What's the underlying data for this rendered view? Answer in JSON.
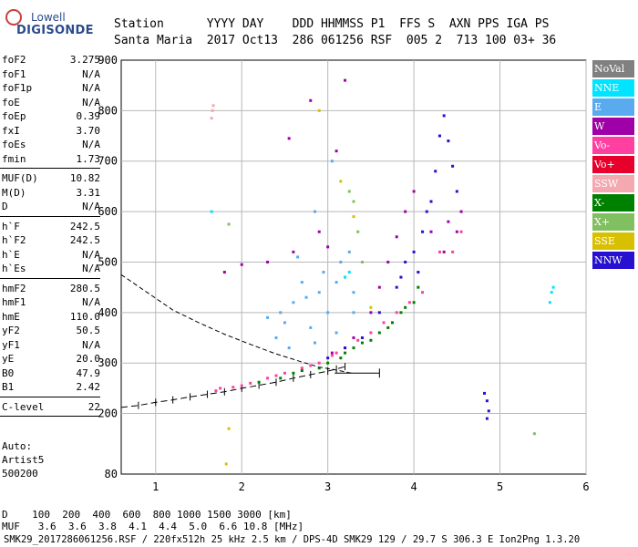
{
  "logo": {
    "line1": "Lowell",
    "line2": "DIGISONDE"
  },
  "header": {
    "line1": "Station      YYYY DAY    DDD HHMMSS P1  FFS S  AXN PPS IGA PS",
    "line2": "Santa Maria  2017 Oct13  286 061256 RSF  005 2  713 100 03+ 36"
  },
  "params": [
    {
      "name": "foF2",
      "value": "3.275"
    },
    {
      "name": "foF1",
      "value": "N/A"
    },
    {
      "name": "foF1p",
      "value": "N/A"
    },
    {
      "name": "foE",
      "value": "N/A"
    },
    {
      "name": "foEp",
      "value": "0.39"
    },
    {
      "name": "fxI",
      "value": "3.70"
    },
    {
      "name": "foEs",
      "value": "N/A"
    },
    {
      "name": "fmin",
      "value": "1.73"
    },
    {
      "sep": true
    },
    {
      "name": "MUF(D)",
      "value": "10.82"
    },
    {
      "name": "M(D)",
      "value": "3.31"
    },
    {
      "name": "D",
      "value": "N/A"
    },
    {
      "sep": true
    },
    {
      "name": "h`F",
      "value": "242.5"
    },
    {
      "name": "h`F2",
      "value": "242.5"
    },
    {
      "name": "h`E",
      "value": "N/A"
    },
    {
      "name": "h`Es",
      "value": "N/A"
    },
    {
      "sep": true
    },
    {
      "name": "hmF2",
      "value": "280.5"
    },
    {
      "name": "hmF1",
      "value": "N/A"
    },
    {
      "name": "hmE",
      "value": "110.0"
    },
    {
      "name": "yF2",
      "value": "50.5"
    },
    {
      "name": "yF1",
      "value": "N/A"
    },
    {
      "name": "yE",
      "value": "20.0"
    },
    {
      "name": "B0",
      "value": "47.9"
    },
    {
      "name": "B1",
      "value": "2.42"
    },
    {
      "sep": true
    },
    {
      "name": "C-level",
      "value": "22"
    },
    {
      "sep": true
    }
  ],
  "auto": {
    "line1": "Auto:",
    "line2": "Artist5",
    "line3": "500200"
  },
  "conditions": {
    "line1": "D    100  200  400  600  800 1000 1500 3000 [km]",
    "line2": "MUF   3.6  3.6  3.8  4.1  4.4  5.0  6.6 10.8 [MHz]"
  },
  "footer": {
    "text": "SMK29_2017286061256.RSF / 220fx512h 25 kHz 2.5 km / DPS-4D SMK29 129 / 29.7 S 306.3 E Ion2Png 1.3.20"
  },
  "legend": [
    {
      "label": "NoVal",
      "color": "#808080"
    },
    {
      "label": "NNE",
      "color": "#00e4ff"
    },
    {
      "label": "E",
      "color": "#5aaaf0"
    },
    {
      "label": "W",
      "color": "#a000a8"
    },
    {
      "label": "Vo-",
      "color": "#ff40a0"
    },
    {
      "label": "Vo+",
      "color": "#e8002c"
    },
    {
      "label": "SSW",
      "color": "#f4a8b0"
    },
    {
      "label": "X-",
      "color": "#008000"
    },
    {
      "label": "X+",
      "color": "#80c060"
    },
    {
      "label": "SSE",
      "color": "#d8c000"
    },
    {
      "label": "NNW",
      "color": "#2810d0"
    }
  ],
  "chart_data": {
    "type": "scatter",
    "xlabel": "",
    "ylabel": "",
    "x_ticks": [
      1,
      2,
      3,
      4,
      5,
      6
    ],
    "y_ticks": [
      80,
      200,
      300,
      400,
      500,
      600,
      700,
      800,
      900
    ],
    "xlim": [
      0.6,
      6.0
    ],
    "ylim": [
      80,
      900
    ],
    "grid": true,
    "series": [
      {
        "name": "E",
        "color": "#5aaaf0",
        "points": [
          [
            2.3,
            390
          ],
          [
            2.45,
            400
          ],
          [
            2.6,
            420
          ],
          [
            2.75,
            430
          ],
          [
            2.9,
            440
          ],
          [
            3.1,
            460
          ],
          [
            3.2,
            470
          ],
          [
            3.3,
            440
          ],
          [
            2.5,
            380
          ],
          [
            2.8,
            370
          ],
          [
            3.0,
            400
          ],
          [
            2.95,
            480
          ],
          [
            3.15,
            500
          ],
          [
            3.25,
            520
          ],
          [
            2.7,
            460
          ],
          [
            2.85,
            600
          ],
          [
            3.05,
            700
          ],
          [
            2.65,
            510
          ],
          [
            3.3,
            400
          ],
          [
            3.1,
            360
          ],
          [
            2.4,
            350
          ],
          [
            2.55,
            330
          ],
          [
            2.85,
            340
          ]
        ]
      },
      {
        "name": "W",
        "color": "#a000a8",
        "points": [
          [
            3.05,
            320
          ],
          [
            3.3,
            350
          ],
          [
            3.5,
            400
          ],
          [
            3.6,
            450
          ],
          [
            3.7,
            500
          ],
          [
            3.8,
            550
          ],
          [
            3.9,
            600
          ],
          [
            4.0,
            640
          ],
          [
            4.2,
            560
          ],
          [
            4.35,
            520
          ],
          [
            4.5,
            560
          ],
          [
            4.55,
            600
          ],
          [
            4.4,
            580
          ],
          [
            2.3,
            500
          ],
          [
            2.6,
            520
          ],
          [
            2.9,
            560
          ],
          [
            3.0,
            530
          ],
          [
            3.1,
            720
          ],
          [
            3.2,
            860
          ],
          [
            2.55,
            745
          ],
          [
            2.8,
            820
          ],
          [
            1.8,
            480
          ],
          [
            2.0,
            495
          ]
        ]
      },
      {
        "name": "Vo-",
        "color": "#ff40a0",
        "points": [
          [
            1.7,
            245
          ],
          [
            1.9,
            252
          ],
          [
            2.1,
            260
          ],
          [
            2.3,
            270
          ],
          [
            2.5,
            280
          ],
          [
            2.7,
            290
          ],
          [
            2.9,
            300
          ],
          [
            3.05,
            315
          ],
          [
            3.2,
            330
          ],
          [
            3.35,
            345
          ],
          [
            3.5,
            360
          ],
          [
            3.65,
            380
          ],
          [
            3.8,
            400
          ],
          [
            3.95,
            420
          ],
          [
            2.0,
            255
          ],
          [
            2.4,
            275
          ],
          [
            2.8,
            295
          ],
          [
            1.75,
            250
          ],
          [
            3.1,
            320
          ],
          [
            4.1,
            440
          ],
          [
            4.3,
            520
          ],
          [
            4.45,
            520
          ],
          [
            4.55,
            560
          ]
        ]
      },
      {
        "name": "X-",
        "color": "#008000",
        "points": [
          [
            2.2,
            262
          ],
          [
            2.6,
            280
          ],
          [
            2.9,
            290
          ],
          [
            3.15,
            310
          ],
          [
            3.3,
            330
          ],
          [
            3.5,
            345
          ],
          [
            3.7,
            370
          ],
          [
            3.85,
            400
          ],
          [
            4.0,
            420
          ],
          [
            4.05,
            450
          ],
          [
            2.45,
            270
          ],
          [
            3.0,
            300
          ],
          [
            3.4,
            340
          ],
          [
            3.6,
            360
          ],
          [
            3.75,
            380
          ],
          [
            3.9,
            410
          ],
          [
            2.7,
            285
          ],
          [
            3.2,
            320
          ]
        ]
      },
      {
        "name": "NNW",
        "color": "#2810d0",
        "points": [
          [
            3.0,
            310
          ],
          [
            3.2,
            330
          ],
          [
            3.4,
            350
          ],
          [
            3.6,
            400
          ],
          [
            3.8,
            450
          ],
          [
            3.9,
            500
          ],
          [
            4.0,
            520
          ],
          [
            4.1,
            560
          ],
          [
            4.2,
            620
          ],
          [
            4.25,
            680
          ],
          [
            4.3,
            750
          ],
          [
            4.35,
            790
          ],
          [
            4.4,
            740
          ],
          [
            4.45,
            690
          ],
          [
            4.5,
            640
          ],
          [
            4.05,
            480
          ],
          [
            4.15,
            600
          ],
          [
            3.85,
            470
          ],
          [
            4.85,
            225
          ],
          [
            4.82,
            240
          ],
          [
            4.87,
            205
          ],
          [
            4.85,
            190
          ]
        ]
      },
      {
        "name": "NNE",
        "color": "#00e4ff",
        "points": [
          [
            3.2,
            470
          ],
          [
            3.25,
            480
          ],
          [
            1.65,
            600
          ],
          [
            5.6,
            440
          ],
          [
            5.62,
            450
          ],
          [
            5.58,
            420
          ]
        ]
      },
      {
        "name": "X+",
        "color": "#80c060",
        "points": [
          [
            3.3,
            620
          ],
          [
            3.25,
            640
          ],
          [
            3.4,
            500
          ],
          [
            3.35,
            560
          ],
          [
            5.4,
            160
          ],
          [
            1.85,
            575
          ]
        ]
      },
      {
        "name": "SSE",
        "color": "#d8c000",
        "points": [
          [
            3.3,
            590
          ],
          [
            3.5,
            410
          ],
          [
            3.15,
            660
          ],
          [
            2.9,
            800
          ],
          [
            1.82,
            100
          ],
          [
            1.85,
            170
          ]
        ]
      },
      {
        "name": "SSW",
        "color": "#f4a8b0",
        "points": [
          [
            1.65,
            785
          ],
          [
            1.66,
            800
          ],
          [
            1.67,
            810
          ]
        ]
      }
    ],
    "virtual_height_trace": {
      "x": [
        0.6,
        0.8,
        1.0,
        1.2,
        1.4,
        1.6,
        1.8,
        2.0,
        2.2,
        2.4,
        2.6,
        2.8,
        3.0,
        3.1,
        3.2
      ],
      "y": [
        212,
        216,
        222,
        227,
        233,
        238,
        243,
        250,
        256,
        262,
        270,
        277,
        284,
        288,
        293
      ]
    },
    "model_profile": {
      "x": [
        0.6,
        0.9,
        1.2,
        1.5,
        1.8,
        2.1,
        2.4,
        2.7,
        2.9,
        3.1,
        3.275
      ],
      "y": [
        475,
        440,
        405,
        380,
        357,
        337,
        318,
        302,
        292,
        286,
        280
      ]
    },
    "hmF2_error_bar": {
      "x1": 3.08,
      "x2": 3.6,
      "y": 280
    }
  }
}
